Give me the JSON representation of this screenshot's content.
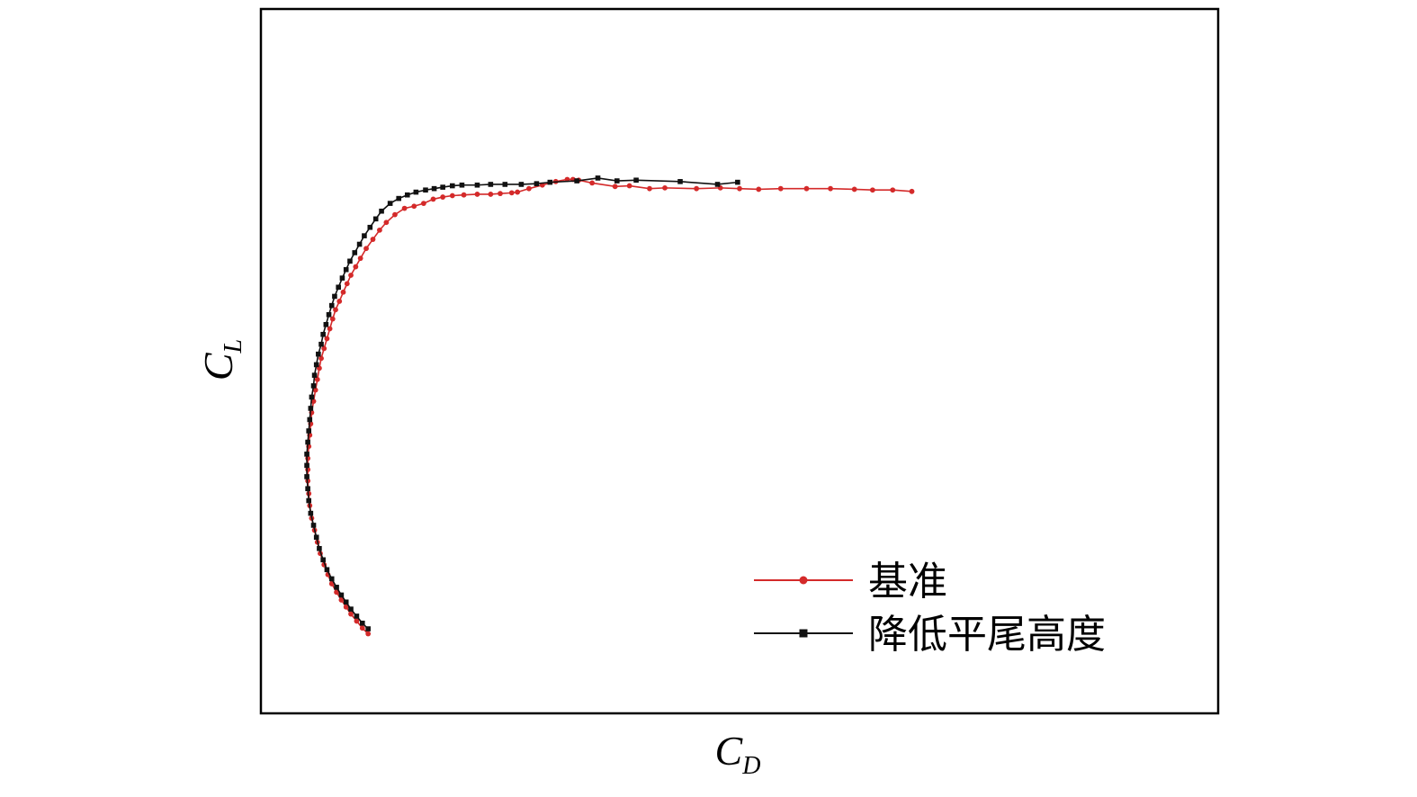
{
  "chart_data": {
    "type": "line",
    "xlabel": {
      "main": "C",
      "sub": "D"
    },
    "ylabel": {
      "main": "C",
      "sub": "L"
    },
    "xlim": [
      0,
      1
    ],
    "ylim": [
      0,
      1
    ],
    "grid": false,
    "ticks": "none",
    "legend_position": "bottom-right",
    "series": [
      {
        "name": "基准",
        "color": "#d42a2a",
        "marker": "circle",
        "points": [
          [
            0.112,
            0.113
          ],
          [
            0.106,
            0.121
          ],
          [
            0.1,
            0.131
          ],
          [
            0.094,
            0.141
          ],
          [
            0.089,
            0.151
          ],
          [
            0.084,
            0.161
          ],
          [
            0.079,
            0.172
          ],
          [
            0.074,
            0.184
          ],
          [
            0.07,
            0.197
          ],
          [
            0.066,
            0.211
          ],
          [
            0.062,
            0.227
          ],
          [
            0.059,
            0.243
          ],
          [
            0.056,
            0.26
          ],
          [
            0.053,
            0.277
          ],
          [
            0.051,
            0.295
          ],
          [
            0.05,
            0.312
          ],
          [
            0.049,
            0.33
          ],
          [
            0.049,
            0.346
          ],
          [
            0.049,
            0.362
          ],
          [
            0.05,
            0.379
          ],
          [
            0.051,
            0.395
          ],
          [
            0.052,
            0.411
          ],
          [
            0.053,
            0.427
          ],
          [
            0.055,
            0.443
          ],
          [
            0.057,
            0.459
          ],
          [
            0.059,
            0.474
          ],
          [
            0.061,
            0.49
          ],
          [
            0.063,
            0.504
          ],
          [
            0.066,
            0.518
          ],
          [
            0.069,
            0.532
          ],
          [
            0.072,
            0.546
          ],
          [
            0.075,
            0.56
          ],
          [
            0.078,
            0.573
          ],
          [
            0.082,
            0.585
          ],
          [
            0.086,
            0.598
          ],
          [
            0.09,
            0.61
          ],
          [
            0.094,
            0.622
          ],
          [
            0.099,
            0.634
          ],
          [
            0.104,
            0.646
          ],
          [
            0.11,
            0.66
          ],
          [
            0.117,
            0.673
          ],
          [
            0.124,
            0.686
          ],
          [
            0.131,
            0.697
          ],
          [
            0.14,
            0.708
          ],
          [
            0.15,
            0.717
          ],
          [
            0.16,
            0.72
          ],
          [
            0.17,
            0.724
          ],
          [
            0.18,
            0.73
          ],
          [
            0.19,
            0.733
          ],
          [
            0.2,
            0.735
          ],
          [
            0.212,
            0.736
          ],
          [
            0.226,
            0.737
          ],
          [
            0.24,
            0.737
          ],
          [
            0.25,
            0.738
          ],
          [
            0.262,
            0.739
          ],
          [
            0.268,
            0.74
          ],
          [
            0.28,
            0.745
          ],
          [
            0.294,
            0.75
          ],
          [
            0.308,
            0.755
          ],
          [
            0.32,
            0.758
          ],
          [
            0.326,
            0.758
          ],
          [
            0.332,
            0.757
          ],
          [
            0.346,
            0.753
          ],
          [
            0.37,
            0.748
          ],
          [
            0.385,
            0.749
          ],
          [
            0.406,
            0.745
          ],
          [
            0.422,
            0.746
          ],
          [
            0.455,
            0.745
          ],
          [
            0.48,
            0.746
          ],
          [
            0.5,
            0.745
          ],
          [
            0.52,
            0.744
          ],
          [
            0.543,
            0.745
          ],
          [
            0.57,
            0.745
          ],
          [
            0.595,
            0.745
          ],
          [
            0.62,
            0.744
          ],
          [
            0.639,
            0.743
          ],
          [
            0.66,
            0.743
          ],
          [
            0.68,
            0.741
          ]
        ]
      },
      {
        "name": "降低平尾高度",
        "color": "#111111",
        "marker": "square",
        "points": [
          [
            0.112,
            0.12
          ],
          [
            0.106,
            0.128
          ],
          [
            0.1,
            0.138
          ],
          [
            0.094,
            0.148
          ],
          [
            0.089,
            0.158
          ],
          [
            0.084,
            0.168
          ],
          [
            0.079,
            0.179
          ],
          [
            0.074,
            0.191
          ],
          [
            0.069,
            0.204
          ],
          [
            0.065,
            0.218
          ],
          [
            0.061,
            0.234
          ],
          [
            0.058,
            0.25
          ],
          [
            0.055,
            0.267
          ],
          [
            0.052,
            0.284
          ],
          [
            0.05,
            0.302
          ],
          [
            0.049,
            0.319
          ],
          [
            0.048,
            0.336
          ],
          [
            0.048,
            0.352
          ],
          [
            0.048,
            0.368
          ],
          [
            0.049,
            0.385
          ],
          [
            0.05,
            0.401
          ],
          [
            0.051,
            0.417
          ],
          [
            0.052,
            0.433
          ],
          [
            0.053,
            0.449
          ],
          [
            0.055,
            0.465
          ],
          [
            0.056,
            0.48
          ],
          [
            0.058,
            0.495
          ],
          [
            0.06,
            0.51
          ],
          [
            0.063,
            0.524
          ],
          [
            0.065,
            0.538
          ],
          [
            0.068,
            0.552
          ],
          [
            0.071,
            0.566
          ],
          [
            0.074,
            0.579
          ],
          [
            0.077,
            0.592
          ],
          [
            0.081,
            0.605
          ],
          [
            0.085,
            0.618
          ],
          [
            0.089,
            0.63
          ],
          [
            0.093,
            0.642
          ],
          [
            0.098,
            0.654
          ],
          [
            0.103,
            0.666
          ],
          [
            0.108,
            0.678
          ],
          [
            0.114,
            0.69
          ],
          [
            0.12,
            0.702
          ],
          [
            0.126,
            0.713
          ],
          [
            0.135,
            0.724
          ],
          [
            0.144,
            0.731
          ],
          [
            0.153,
            0.736
          ],
          [
            0.162,
            0.74
          ],
          [
            0.172,
            0.743
          ],
          [
            0.181,
            0.745
          ],
          [
            0.19,
            0.747
          ],
          [
            0.2,
            0.749
          ],
          [
            0.21,
            0.75
          ],
          [
            0.226,
            0.75
          ],
          [
            0.24,
            0.751
          ],
          [
            0.255,
            0.751
          ],
          [
            0.272,
            0.751
          ],
          [
            0.288,
            0.752
          ],
          [
            0.302,
            0.754
          ],
          [
            0.33,
            0.756
          ],
          [
            0.352,
            0.76
          ],
          [
            0.372,
            0.756
          ],
          [
            0.392,
            0.757
          ],
          [
            0.438,
            0.755
          ],
          [
            0.477,
            0.751
          ],
          [
            0.498,
            0.754
          ]
        ]
      }
    ]
  }
}
